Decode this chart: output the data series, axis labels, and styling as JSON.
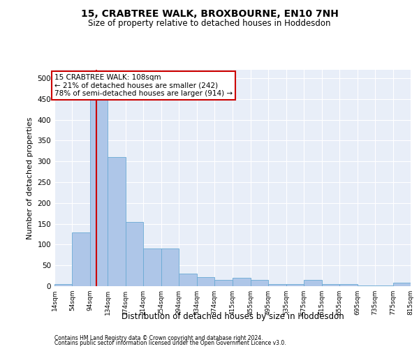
{
  "title": "15, CRABTREE WALK, BROXBOURNE, EN10 7NH",
  "subtitle": "Size of property relative to detached houses in Hoddesdon",
  "xlabel": "Distribution of detached houses by size in Hoddesdon",
  "ylabel": "Number of detached properties",
  "bar_color": "#aec6e8",
  "bar_edge_color": "#6aaad4",
  "background_color": "#e8eef8",
  "grid_color": "#ffffff",
  "annotation_text": "15 CRABTREE WALK: 108sqm\n← 21% of detached houses are smaller (242)\n78% of semi-detached houses are larger (914) →",
  "vline_x": 108,
  "vline_color": "#cc0000",
  "footer1": "Contains HM Land Registry data © Crown copyright and database right 2024.",
  "footer2": "Contains public sector information licensed under the Open Government Licence v3.0.",
  "bin_edges": [
    14,
    54,
    94,
    134,
    174,
    214,
    254,
    294,
    334,
    374,
    415,
    455,
    495,
    535,
    575,
    615,
    655,
    695,
    735,
    775,
    815
  ],
  "bar_heights": [
    5,
    130,
    455,
    310,
    155,
    90,
    90,
    30,
    22,
    15,
    20,
    15,
    5,
    5,
    15,
    5,
    5,
    2,
    2,
    8
  ],
  "ylim": [
    0,
    520
  ],
  "yticks": [
    0,
    50,
    100,
    150,
    200,
    250,
    300,
    350,
    400,
    450,
    500
  ],
  "tick_labels": [
    "14sqm",
    "54sqm",
    "94sqm",
    "134sqm",
    "174sqm",
    "214sqm",
    "254sqm",
    "294sqm",
    "334sqm",
    "374sqm",
    "415sqm",
    "455sqm",
    "495sqm",
    "535sqm",
    "575sqm",
    "615sqm",
    "655sqm",
    "695sqm",
    "735sqm",
    "775sqm",
    "815sqm"
  ]
}
